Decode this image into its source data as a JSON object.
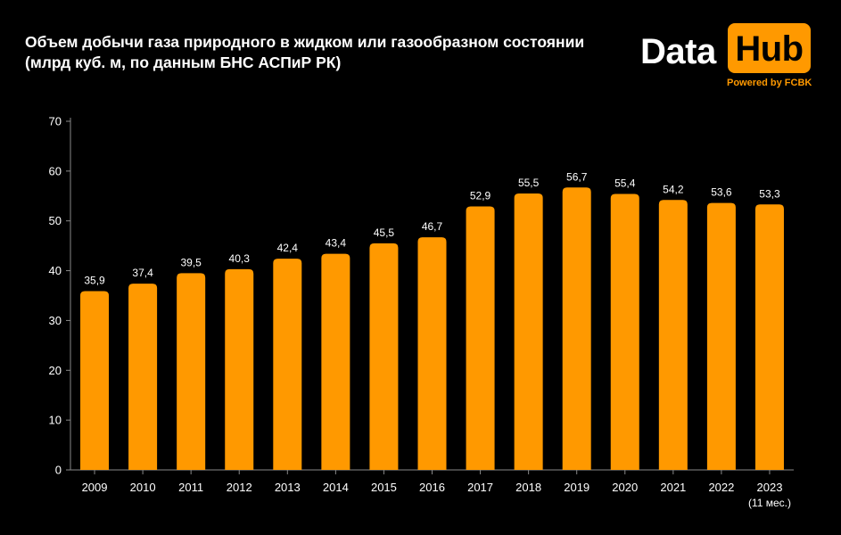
{
  "title": {
    "line1": "Объем добычи газа природного в жидком или газообразном состоянии",
    "line2": "(млрд куб. м, по данным БНС АСПиР РК)"
  },
  "logo": {
    "data_text": "Data",
    "hub_text": "Hub",
    "powered_text": "Powered by FCBK"
  },
  "colors": {
    "background": "#000000",
    "bar": "#ff9900",
    "text": "#ffffff",
    "axis": "#888888"
  },
  "chart_data": {
    "type": "bar",
    "title": "Объем добычи газа природного в жидком или газообразном состоянии",
    "subtitle": "(млрд куб. м, по данным БНС АСПиР РК)",
    "xlabel": "",
    "ylabel": "",
    "categories": [
      "2009",
      "2010",
      "2011",
      "2012",
      "2013",
      "2014",
      "2015",
      "2016",
      "2017",
      "2018",
      "2019",
      "2020",
      "2021",
      "2022",
      "2023"
    ],
    "category_notes": [
      "",
      "",
      "",
      "",
      "",
      "",
      "",
      "",
      "",
      "",
      "",
      "",
      "",
      "",
      "(11 мес.)"
    ],
    "values": [
      35.9,
      37.4,
      39.5,
      40.3,
      42.4,
      43.4,
      45.5,
      46.7,
      52.9,
      55.5,
      56.7,
      55.4,
      54.2,
      53.6,
      53.3
    ],
    "value_labels": [
      "35,9",
      "37,4",
      "39,5",
      "40,3",
      "42,4",
      "43,4",
      "45,5",
      "46,7",
      "52,9",
      "55,5",
      "56,7",
      "55,4",
      "54,2",
      "53,6",
      "53,3"
    ],
    "yticks": [
      0,
      10,
      20,
      30,
      40,
      50,
      60,
      70
    ],
    "ylim": [
      0,
      70
    ],
    "grid": false,
    "legend": "none"
  }
}
